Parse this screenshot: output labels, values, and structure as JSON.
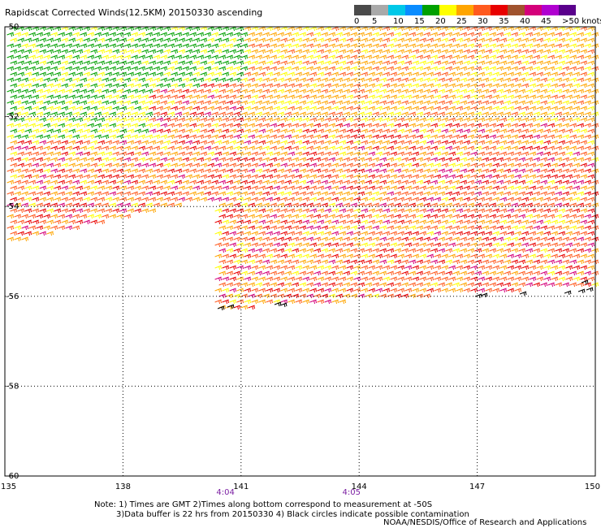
{
  "title": "Rapidscat Corrected Winds(12.5KM) 20150330 ascending",
  "legend": {
    "colors": [
      "#4a4a4a",
      "#a9a9a9",
      "#00c8e8",
      "#0a8cff",
      "#00a000",
      "#ffff00",
      "#ffa500",
      "#ff5a1e",
      "#e80000",
      "#a0522d",
      "#d4007a",
      "#b000d0",
      "#5a008c"
    ],
    "labels": [
      "0",
      "5",
      "10",
      "15",
      "20",
      "25",
      "30",
      "35",
      "40",
      "45",
      ">50 knots"
    ]
  },
  "chart_data": {
    "type": "wind_barb_map",
    "lon_ticks": [
      "135",
      "138",
      "141",
      "144",
      "147",
      "150"
    ],
    "lat_ticks": [
      "-50",
      "-52",
      "-54",
      "-56",
      "-58",
      "-60"
    ],
    "lon_range": [
      135,
      150
    ],
    "lat_range": [
      -60,
      -50
    ],
    "grid": true,
    "times": [
      {
        "label": "4:04",
        "lon": 140.6
      },
      {
        "label": "4:05",
        "lon": 143.8
      }
    ]
  },
  "notes": {
    "line1": "Note: 1) Times are GMT 2)Times along bottom correspond to measurement at -50S",
    "line2": "3)Data buffer is 22 hrs from 20150330 4) Black circles indicate possible contamination"
  },
  "credit": "NOAA/NESDIS/Office of Research and Applications"
}
